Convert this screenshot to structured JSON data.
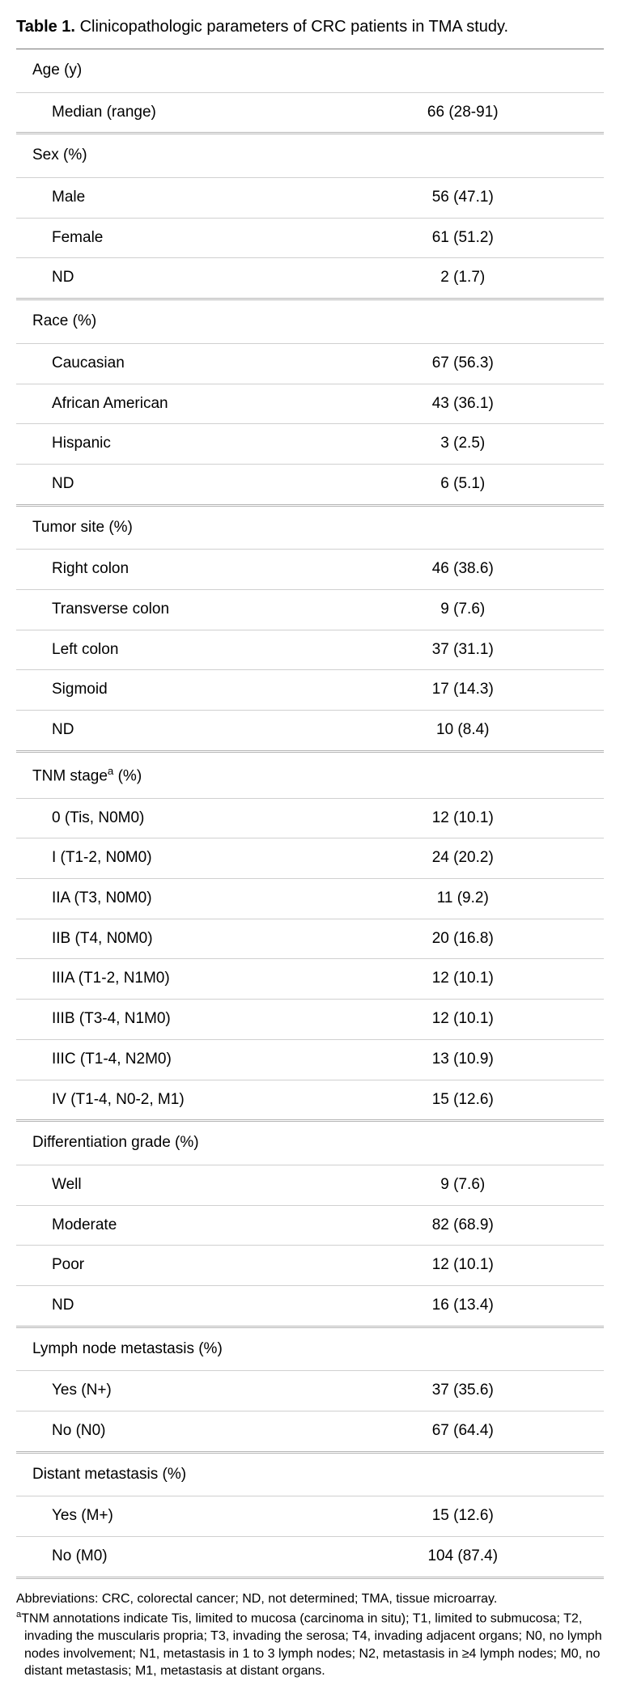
{
  "caption": {
    "label": "Table 1.",
    "text": "Clinicopathologic parameters of CRC patients in TMA study."
  },
  "sections": [
    {
      "header": "Age (y)",
      "rows": [
        {
          "label": "Median (range)",
          "value": "66 (28-91)"
        }
      ]
    },
    {
      "header": "Sex (%)",
      "rows": [
        {
          "label": "Male",
          "value": "56 (47.1)"
        },
        {
          "label": "Female",
          "value": "61 (51.2)"
        },
        {
          "label": "ND",
          "value": "2 (1.7)"
        }
      ]
    },
    {
      "header": "Race (%)",
      "rows": [
        {
          "label": "Caucasian",
          "value": "67 (56.3)"
        },
        {
          "label": "African American",
          "value": "43 (36.1)"
        },
        {
          "label": "Hispanic",
          "value": "3 (2.5)"
        },
        {
          "label": "ND",
          "value": "6 (5.1)"
        }
      ]
    },
    {
      "header": "Tumor site (%)",
      "rows": [
        {
          "label": "Right colon",
          "value": "46 (38.6)"
        },
        {
          "label": "Transverse colon",
          "value": "9 (7.6)"
        },
        {
          "label": "Left colon",
          "value": "37 (31.1)"
        },
        {
          "label": "Sigmoid",
          "value": "17 (14.3)"
        },
        {
          "label": "ND",
          "value": "10 (8.4)"
        }
      ]
    },
    {
      "header": "TNM stage",
      "header_sup": "a",
      "header_suffix": " (%)",
      "rows": [
        {
          "label": "0 (Tis, N0M0)",
          "value": "12 (10.1)"
        },
        {
          "label": "I (T1-2, N0M0)",
          "value": "24 (20.2)"
        },
        {
          "label": "IIA (T3, N0M0)",
          "value": "11 (9.2)"
        },
        {
          "label": "IIB (T4, N0M0)",
          "value": "20 (16.8)"
        },
        {
          "label": "IIIA (T1-2, N1M0)",
          "value": "12 (10.1)"
        },
        {
          "label": "IIIB (T3-4, N1M0)",
          "value": "12 (10.1)"
        },
        {
          "label": "IIIC (T1-4, N2M0)",
          "value": "13 (10.9)"
        },
        {
          "label": "IV (T1-4, N0-2, M1)",
          "value": "15 (12.6)"
        }
      ]
    },
    {
      "header": "Differentiation grade (%)",
      "rows": [
        {
          "label": "Well",
          "value": "9 (7.6)"
        },
        {
          "label": "Moderate",
          "value": "82 (68.9)"
        },
        {
          "label": "Poor",
          "value": "12 (10.1)"
        },
        {
          "label": "ND",
          "value": "16 (13.4)"
        }
      ]
    },
    {
      "header": "Lymph node metastasis (%)",
      "rows": [
        {
          "label": "Yes (N+)",
          "value": "37 (35.6)"
        },
        {
          "label": "No (N0)",
          "value": "67 (64.4)"
        }
      ]
    },
    {
      "header": "Distant metastasis (%)",
      "rows": [
        {
          "label": "Yes (M+)",
          "value": "15 (12.6)"
        },
        {
          "label": "No (M0)",
          "value": "104 (87.4)"
        }
      ]
    }
  ],
  "footnotes": {
    "abbrev": "Abbreviations: CRC, colorectal cancer; ND, not determined; TMA, tissue microarray.",
    "note_a_sup": "a",
    "note_a": "TNM annotations indicate Tis, limited to mucosa (carcinoma in situ); T1, limited to submucosa; T2, invading the muscularis propria; T3, invading the serosa; T4, invading adjacent organs; N0, no lymph nodes involvement; N1, metastasis in 1 to 3 lymph nodes; N2, metastasis in ≥4 lymph nodes; M0, no distant metastasis; M1, metastasis at distant organs."
  }
}
